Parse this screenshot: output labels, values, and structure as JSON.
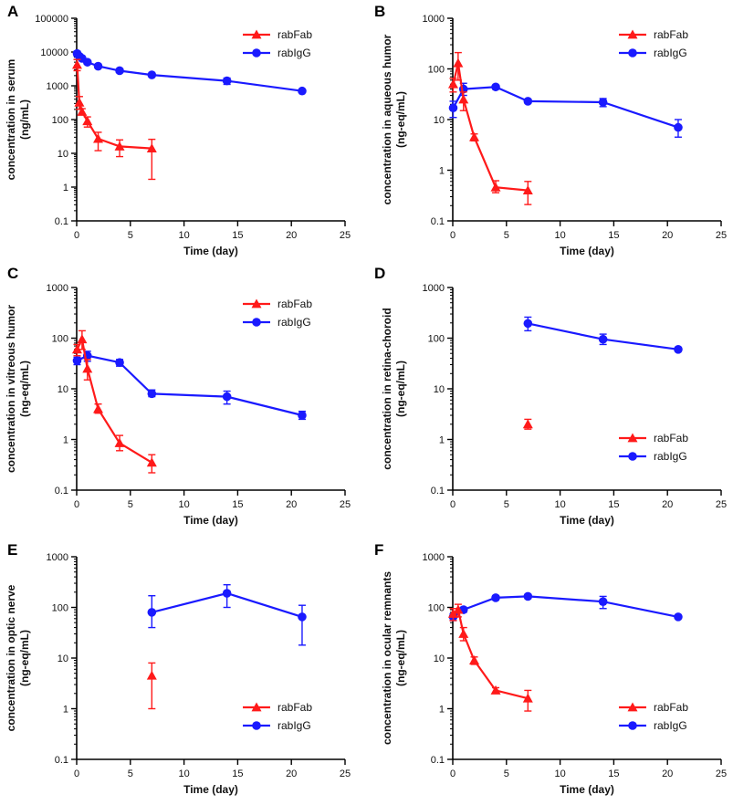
{
  "figure": {
    "series_styles": [
      {
        "name": "rabFab",
        "color": "#ff1a1a",
        "marker": "triangle"
      },
      {
        "name": "rabIgG",
        "color": "#1a1aff",
        "marker": "circle"
      }
    ]
  },
  "chart_data": [
    {
      "panel": "A",
      "type": "line",
      "xlabel": "Time (day)",
      "ylabel_lines": [
        "concentration in serum",
        "(ng/mL)"
      ],
      "xlim": [
        0,
        25
      ],
      "xticks": [
        0,
        5,
        10,
        15,
        20,
        25
      ],
      "yscale": "log",
      "ylim": [
        0.1,
        100000
      ],
      "yticks": [
        0.1,
        1,
        10,
        100,
        1000,
        10000,
        100000
      ],
      "ytick_labels": [
        "0.1",
        "1",
        "10",
        "100",
        "1000",
        "10000",
        "100000"
      ],
      "legend": "top-right",
      "series": [
        {
          "name": "rabFab",
          "points": [
            {
              "x": 0.04,
              "y": 4200,
              "lo": 2800,
              "hi": 6000
            },
            {
              "x": 0.25,
              "y": 320,
              "lo": 200,
              "hi": 480
            },
            {
              "x": 0.5,
              "y": 170,
              "lo": 140,
              "hi": 210
            },
            {
              "x": 1,
              "y": 90,
              "lo": 60,
              "hi": 120
            },
            {
              "x": 2,
              "y": 27,
              "lo": 12,
              "hi": 42
            },
            {
              "x": 4,
              "y": 16,
              "lo": 8,
              "hi": 25
            },
            {
              "x": 7,
              "y": 14,
              "lo": 1.7,
              "hi": 26
            }
          ]
        },
        {
          "name": "rabIgG",
          "points": [
            {
              "x": 0.04,
              "y": 9000,
              "lo": 7500,
              "hi": 10500
            },
            {
              "x": 0.25,
              "y": 7500,
              "lo": 6500,
              "hi": 8500
            },
            {
              "x": 0.5,
              "y": 6500,
              "lo": 5800,
              "hi": 7200
            },
            {
              "x": 1,
              "y": 5000,
              "lo": 4400,
              "hi": 5600
            },
            {
              "x": 2,
              "y": 3800,
              "lo": 3500,
              "hi": 4200
            },
            {
              "x": 4,
              "y": 2800,
              "lo": 2600,
              "hi": 3000
            },
            {
              "x": 7,
              "y": 2100,
              "lo": 1950,
              "hi": 2250
            },
            {
              "x": 14,
              "y": 1400,
              "lo": 1100,
              "hi": 1700
            },
            {
              "x": 21,
              "y": 700,
              "lo": 650,
              "hi": 750
            }
          ]
        }
      ]
    },
    {
      "panel": "B",
      "type": "line",
      "xlabel": "Time (day)",
      "ylabel_lines": [
        "concentration  in aqueous humor",
        "(ng-eq/mL)"
      ],
      "xlim": [
        0,
        25
      ],
      "xticks": [
        0,
        5,
        10,
        15,
        20,
        25
      ],
      "yscale": "log",
      "ylim": [
        0.1,
        1000
      ],
      "yticks": [
        0.1,
        1,
        10,
        100,
        1000
      ],
      "ytick_labels": [
        "0.1",
        "1",
        "10",
        "100",
        "1000"
      ],
      "legend": "top-right",
      "series": [
        {
          "name": "rabFab",
          "points": [
            {
              "x": 0.04,
              "y": 50,
              "lo": 35,
              "hi": 65
            },
            {
              "x": 0.5,
              "y": 130,
              "lo": 60,
              "hi": 210
            },
            {
              "x": 1,
              "y": 25,
              "lo": 15,
              "hi": 35
            },
            {
              "x": 2,
              "y": 4.5,
              "lo": 3.8,
              "hi": 5.2
            },
            {
              "x": 4,
              "y": 0.46,
              "lo": 0.36,
              "hi": 0.62
            },
            {
              "x": 7,
              "y": 0.4,
              "lo": 0.21,
              "hi": 0.6
            }
          ]
        },
        {
          "name": "rabIgG",
          "points": [
            {
              "x": 0.04,
              "y": 17,
              "lo": 11,
              "hi": 23
            },
            {
              "x": 1,
              "y": 40,
              "lo": 30,
              "hi": 52
            },
            {
              "x": 4,
              "y": 44,
              "lo": 40,
              "hi": 48
            },
            {
              "x": 7,
              "y": 23,
              "lo": 21,
              "hi": 25
            },
            {
              "x": 14,
              "y": 22,
              "lo": 18,
              "hi": 26
            },
            {
              "x": 21,
              "y": 7,
              "lo": 4.5,
              "hi": 10
            }
          ]
        }
      ]
    },
    {
      "panel": "C",
      "type": "line",
      "xlabel": "Time (day)",
      "ylabel_lines": [
        "concentration in vitreous humor",
        "(ng-eq/mL)"
      ],
      "xlim": [
        0,
        25
      ],
      "xticks": [
        0,
        5,
        10,
        15,
        20,
        25
      ],
      "yscale": "log",
      "ylim": [
        0.1,
        1000
      ],
      "yticks": [
        0.1,
        1,
        10,
        100,
        1000
      ],
      "ytick_labels": [
        "0.1",
        "1",
        "10",
        "100",
        "1000"
      ],
      "legend": "top-right",
      "series": [
        {
          "name": "rabFab",
          "points": [
            {
              "x": 0.04,
              "y": 60,
              "lo": 45,
              "hi": 75
            },
            {
              "x": 0.5,
              "y": 95,
              "lo": 60,
              "hi": 140
            },
            {
              "x": 1,
              "y": 25,
              "lo": 15,
              "hi": 38
            },
            {
              "x": 2,
              "y": 4,
              "lo": 3.3,
              "hi": 5
            },
            {
              "x": 4,
              "y": 0.85,
              "lo": 0.6,
              "hi": 1.2
            },
            {
              "x": 7,
              "y": 0.35,
              "lo": 0.22,
              "hi": 0.5
            }
          ]
        },
        {
          "name": "rabIgG",
          "points": [
            {
              "x": 0.04,
              "y": 36,
              "lo": 30,
              "hi": 42
            },
            {
              "x": 1,
              "y": 45,
              "lo": 35,
              "hi": 55
            },
            {
              "x": 4,
              "y": 33,
              "lo": 28,
              "hi": 38
            },
            {
              "x": 7,
              "y": 8,
              "lo": 7,
              "hi": 9.5
            },
            {
              "x": 14,
              "y": 7,
              "lo": 5,
              "hi": 9
            },
            {
              "x": 21,
              "y": 3,
              "lo": 2.5,
              "hi": 3.6
            }
          ]
        }
      ]
    },
    {
      "panel": "D",
      "type": "line",
      "xlabel": "Time (day)",
      "ylabel_lines": [
        "concentration in retina-choroid",
        "(ng-eq/mL)"
      ],
      "xlim": [
        0,
        25
      ],
      "xticks": [
        0,
        5,
        10,
        15,
        20,
        25
      ],
      "yscale": "log",
      "ylim": [
        0.1,
        1000
      ],
      "yticks": [
        0.1,
        1,
        10,
        100,
        1000
      ],
      "ytick_labels": [
        "0.1",
        "1",
        "10",
        "100",
        "1000"
      ],
      "legend": "bottom-right",
      "series": [
        {
          "name": "rabFab",
          "points": [
            {
              "x": 7,
              "y": 2,
              "lo": 1.6,
              "hi": 2.5
            }
          ]
        },
        {
          "name": "rabIgG",
          "points": [
            {
              "x": 7,
              "y": 195,
              "lo": 140,
              "hi": 260
            },
            {
              "x": 14,
              "y": 95,
              "lo": 75,
              "hi": 120
            },
            {
              "x": 21,
              "y": 60,
              "lo": 55,
              "hi": 65
            }
          ]
        }
      ]
    },
    {
      "panel": "E",
      "type": "line",
      "xlabel": "Time (day)",
      "ylabel_lines": [
        "concentration in optic nerve",
        "(ng-eq/mL)"
      ],
      "xlim": [
        0,
        25
      ],
      "xticks": [
        0,
        5,
        10,
        15,
        20,
        25
      ],
      "yscale": "log",
      "ylim": [
        0.1,
        1000
      ],
      "yticks": [
        0.1,
        1,
        10,
        100,
        1000
      ],
      "ytick_labels": [
        "0.1",
        "1",
        "10",
        "100",
        "1000"
      ],
      "legend": "bottom-right",
      "series": [
        {
          "name": "rabFab",
          "points": [
            {
              "x": 7,
              "y": 4.5,
              "lo": 1,
              "hi": 8
            }
          ]
        },
        {
          "name": "rabIgG",
          "points": [
            {
              "x": 7,
              "y": 80,
              "lo": 40,
              "hi": 170
            },
            {
              "x": 14,
              "y": 190,
              "lo": 100,
              "hi": 280
            },
            {
              "x": 21,
              "y": 65,
              "lo": 18,
              "hi": 110
            }
          ]
        }
      ]
    },
    {
      "panel": "F",
      "type": "line",
      "xlabel": "Time (day)",
      "ylabel_lines": [
        "concentration in ocular remnants",
        "(ng-eq/mL)"
      ],
      "xlim": [
        0,
        25
      ],
      "xticks": [
        0,
        5,
        10,
        15,
        20,
        25
      ],
      "yscale": "log",
      "ylim": [
        0.1,
        1000
      ],
      "yticks": [
        0.1,
        1,
        10,
        100,
        1000
      ],
      "ytick_labels": [
        "0.1",
        "1",
        "10",
        "100",
        "1000"
      ],
      "legend": "bottom-right",
      "series": [
        {
          "name": "rabFab",
          "points": [
            {
              "x": 0.04,
              "y": 75,
              "lo": 55,
              "hi": 95
            },
            {
              "x": 0.5,
              "y": 90,
              "lo": 65,
              "hi": 115
            },
            {
              "x": 1,
              "y": 30,
              "lo": 22,
              "hi": 40
            },
            {
              "x": 2,
              "y": 9,
              "lo": 7.5,
              "hi": 10.5
            },
            {
              "x": 4,
              "y": 2.3,
              "lo": 2,
              "hi": 2.6
            },
            {
              "x": 7,
              "y": 1.6,
              "lo": 0.9,
              "hi": 2.3
            }
          ]
        },
        {
          "name": "rabIgG",
          "points": [
            {
              "x": 0.04,
              "y": 65,
              "lo": 55,
              "hi": 75
            },
            {
              "x": 1,
              "y": 90,
              "lo": 80,
              "hi": 100
            },
            {
              "x": 4,
              "y": 155,
              "lo": 140,
              "hi": 170
            },
            {
              "x": 7,
              "y": 165,
              "lo": 150,
              "hi": 180
            },
            {
              "x": 14,
              "y": 130,
              "lo": 95,
              "hi": 165
            },
            {
              "x": 21,
              "y": 65,
              "lo": 60,
              "hi": 70
            }
          ]
        }
      ]
    }
  ]
}
